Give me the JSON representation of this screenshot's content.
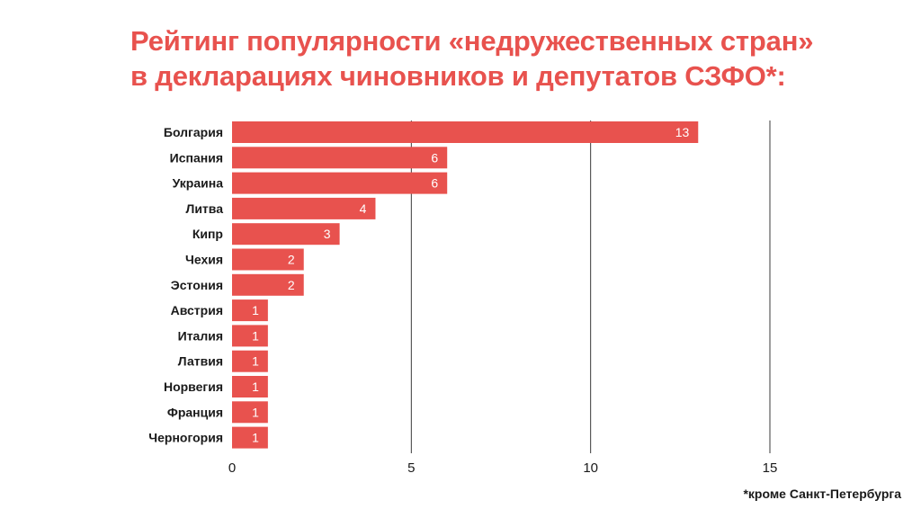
{
  "title_line1": "Рейтинг популярности «недружественных стран»",
  "title_line2": "в декларациях чиновников и депутатов СЗФО*:",
  "footnote": "*кроме Санкт-Петербурга",
  "colors": {
    "bar": "#e8524e",
    "title": "#e8524e",
    "grid": "#3a3a3a",
    "label": "#1a1a1a",
    "bar_label": "#ffffff"
  },
  "chart_data": {
    "type": "bar",
    "orientation": "horizontal",
    "categories": [
      "Болгария",
      "Испания",
      "Украина",
      "Литва",
      "Кипр",
      "Чехия",
      "Эстония",
      "Австрия",
      "Италия",
      "Латвия",
      "Норвегия",
      "Франция",
      "Черногория"
    ],
    "values": [
      13,
      6,
      6,
      4,
      3,
      2,
      2,
      1,
      1,
      1,
      1,
      1,
      1
    ],
    "xlim": [
      0,
      15
    ],
    "xticks": [
      0,
      5,
      10,
      15
    ],
    "grid": "vertical",
    "data_labels": true,
    "legend": "none"
  }
}
